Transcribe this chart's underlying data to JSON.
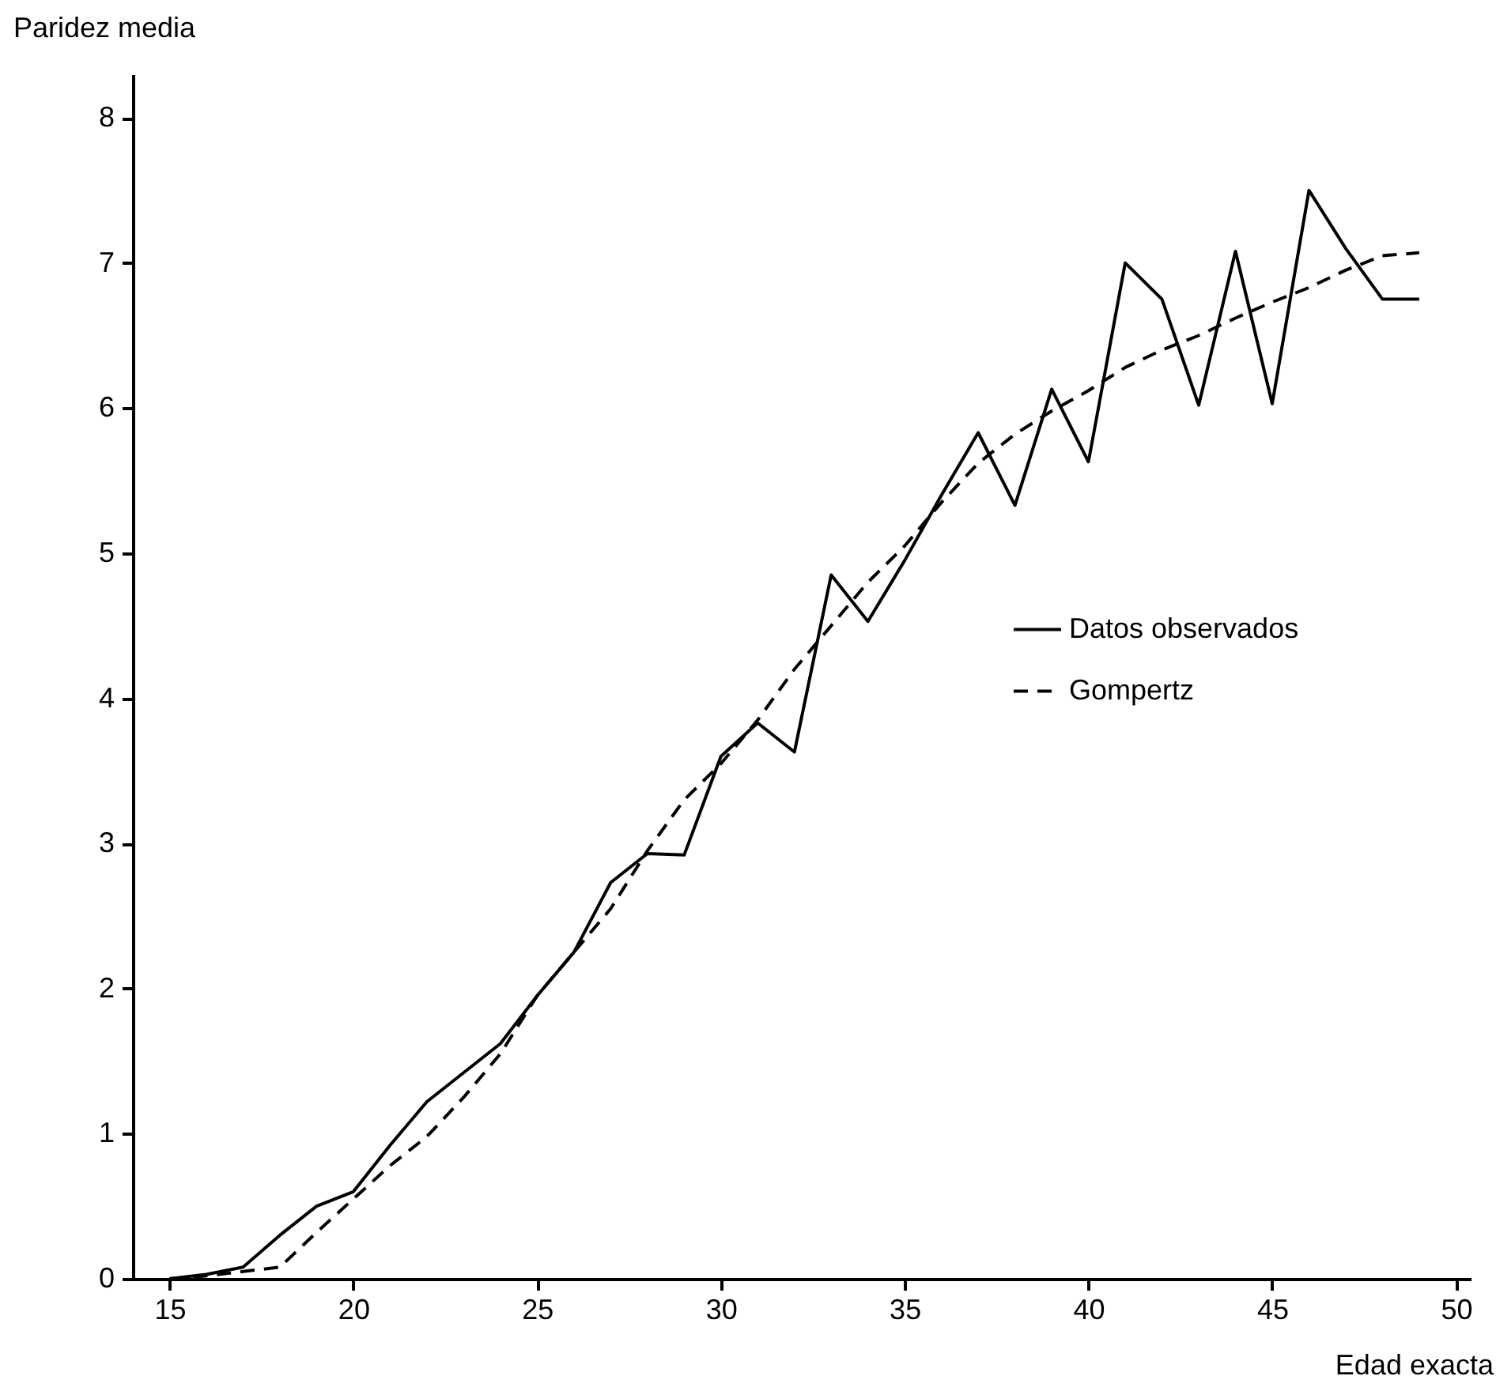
{
  "chart_data": {
    "type": "line",
    "xlabel": "Edad exacta",
    "ylabel": "Paridez media",
    "x": [
      15,
      16,
      17,
      18,
      19,
      20,
      21,
      22,
      23,
      24,
      25,
      26,
      27,
      28,
      29,
      30,
      31,
      32,
      33,
      34,
      35,
      36,
      37,
      38,
      39,
      40,
      41,
      42,
      43,
      44,
      45,
      46,
      47,
      48,
      49
    ],
    "series": [
      {
        "name": "Datos observados",
        "color": "#000000",
        "line_style": "solid",
        "values": [
          0,
          0.03,
          0.08,
          0.3,
          0.5,
          0.6,
          0.92,
          1.22,
          1.42,
          1.62,
          1.95,
          2.25,
          2.73,
          2.93,
          2.92,
          3.6,
          3.83,
          3.63,
          4.85,
          4.53,
          4.95,
          5.4,
          5.83,
          5.33,
          6.13,
          5.63,
          7.0,
          6.75,
          6.02,
          7.08,
          6.03,
          7.5,
          7.1,
          6.75,
          6.75
        ]
      },
      {
        "name": "Gompertz",
        "color": "#000000",
        "line_style": "dashed",
        "values": [
          0,
          0.02,
          0.05,
          0.08,
          0.32,
          0.55,
          0.78,
          0.98,
          1.25,
          1.55,
          1.95,
          2.25,
          2.55,
          2.95,
          3.3,
          3.55,
          3.85,
          4.2,
          4.5,
          4.8,
          5.05,
          5.35,
          5.62,
          5.82,
          5.98,
          6.12,
          6.28,
          6.4,
          6.5,
          6.62,
          6.73,
          6.83,
          6.95,
          7.05,
          7.07
        ]
      }
    ],
    "xlim": [
      14,
      50.4
    ],
    "xticks": [
      15,
      20,
      25,
      30,
      35,
      40,
      45,
      50
    ],
    "ylim": [
      0,
      8.3
    ],
    "yticks": [
      0,
      1,
      2,
      3,
      4,
      5,
      6,
      7,
      8
    ],
    "grid": false,
    "legend": "right",
    "marker": "none"
  }
}
